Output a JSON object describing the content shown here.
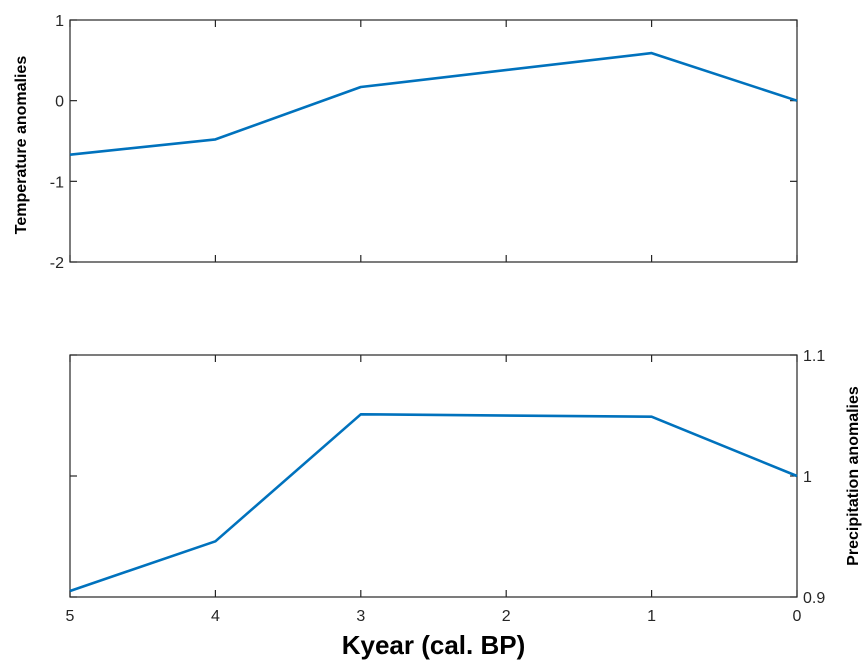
{
  "chart_data": [
    {
      "type": "line",
      "ylabel": "Temperature anomalies",
      "xlabel": "",
      "xlim": [
        5,
        0
      ],
      "ylim": [
        -2,
        1
      ],
      "x_ticks": [
        "5",
        "4",
        "3",
        "2",
        "1",
        "0"
      ],
      "x_ticks_labeled": false,
      "y_ticks": [
        "-2",
        "-1",
        "0",
        "1"
      ],
      "y_axis_side": "left",
      "grid": false,
      "color": "#0072BD",
      "series": [
        {
          "x": [
            5,
            4,
            3,
            1,
            0
          ],
          "values": [
            -0.67,
            -0.48,
            0.17,
            0.59,
            0.0
          ]
        }
      ]
    },
    {
      "type": "line",
      "ylabel": "Precipitation anomalies",
      "xlabel": "Kyear (cal. BP)",
      "xlim": [
        5,
        0
      ],
      "ylim": [
        0.9,
        1.1
      ],
      "x_ticks": [
        "5",
        "4",
        "3",
        "2",
        "1",
        "0"
      ],
      "x_ticks_labeled": true,
      "y_ticks": [
        "0.9",
        "1",
        "1.1"
      ],
      "y_axis_side": "right",
      "grid": false,
      "color": "#0072BD",
      "series": [
        {
          "x": [
            5,
            4,
            3,
            1,
            0
          ],
          "values": [
            0.905,
            0.946,
            1.051,
            1.049,
            1.0
          ]
        }
      ]
    }
  ]
}
